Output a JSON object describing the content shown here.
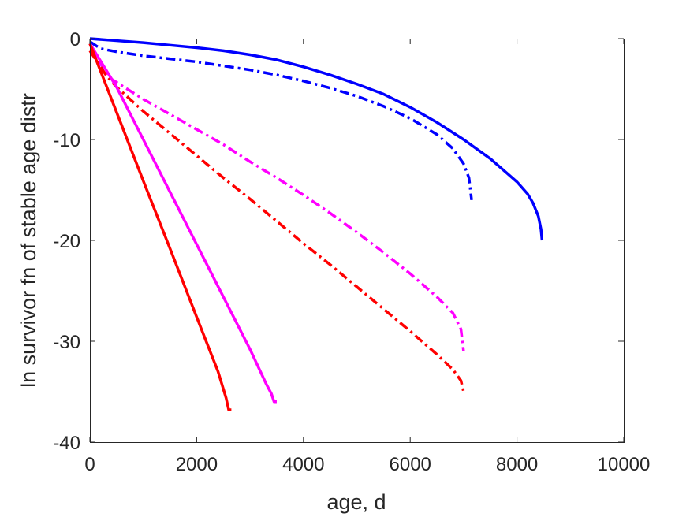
{
  "chart_data": {
    "type": "line",
    "title": "",
    "xlabel": "age, d",
    "ylabel": "ln survivor fn of stable age distr",
    "xlim": [
      0,
      10000
    ],
    "ylim": [
      -40,
      0
    ],
    "xticks": [
      0,
      2000,
      4000,
      6000,
      8000,
      10000
    ],
    "yticks": [
      0,
      -10,
      -20,
      -30,
      -40
    ],
    "xtick_labels": [
      "0",
      "2000",
      "4000",
      "6000",
      "8000",
      "10000"
    ],
    "ytick_labels": [
      "0",
      "-10",
      "-20",
      "-30",
      "-40"
    ],
    "grid": false,
    "legend": "none",
    "series": [
      {
        "color": "#0000ff",
        "style": "solid",
        "x": [
          0,
          500,
          1000,
          1500,
          2000,
          2500,
          3000,
          3500,
          4000,
          4500,
          5000,
          5500,
          6000,
          6500,
          7000,
          7500,
          8000,
          8200,
          8300,
          8400,
          8450,
          8470
        ],
        "y": [
          0,
          -0.2,
          -0.4,
          -0.65,
          -0.9,
          -1.2,
          -1.6,
          -2.1,
          -2.8,
          -3.6,
          -4.5,
          -5.5,
          -6.8,
          -8.3,
          -10.0,
          -11.9,
          -14.2,
          -15.4,
          -16.3,
          -17.6,
          -18.9,
          -20.0
        ]
      },
      {
        "color": "#0000ff",
        "style": "dashdot",
        "x": [
          0,
          200,
          500,
          1000,
          1500,
          2000,
          2500,
          3000,
          3500,
          4000,
          4500,
          5000,
          5500,
          6000,
          6500,
          6800,
          7000,
          7100,
          7150
        ],
        "y": [
          -0.3,
          -1.0,
          -1.3,
          -1.7,
          -2.0,
          -2.3,
          -2.7,
          -3.1,
          -3.6,
          -4.2,
          -4.9,
          -5.7,
          -6.7,
          -7.9,
          -9.5,
          -10.9,
          -12.4,
          -13.8,
          -16.0
        ]
      },
      {
        "color": "#ff00ff",
        "style": "dashdot",
        "x": [
          0,
          100,
          200,
          300,
          400,
          1000,
          1500,
          2000,
          2500,
          3000,
          3500,
          4000,
          4500,
          5000,
          5500,
          6000,
          6500,
          6800,
          6950,
          7000
        ],
        "y": [
          -0.5,
          -1.5,
          -2.5,
          -3.3,
          -4.0,
          -6.0,
          -7.5,
          -9.0,
          -10.5,
          -12.2,
          -13.8,
          -15.5,
          -17.3,
          -19.2,
          -21.2,
          -23.3,
          -25.6,
          -27.2,
          -28.8,
          -31.0
        ]
      },
      {
        "color": "#ff0000",
        "style": "dashdot",
        "x": [
          0,
          100,
          200,
          300,
          500,
          1000,
          1500,
          2000,
          2500,
          3000,
          3500,
          4000,
          4500,
          5000,
          5500,
          6000,
          6500,
          6800,
          6950,
          7000
        ],
        "y": [
          -1.2,
          -2.0,
          -2.8,
          -3.6,
          -4.8,
          -7.2,
          -9.4,
          -11.6,
          -13.8,
          -15.9,
          -18.1,
          -20.3,
          -22.4,
          -24.6,
          -26.8,
          -29.0,
          -31.3,
          -32.8,
          -33.9,
          -35.0
        ]
      },
      {
        "color": "#ff00ff",
        "style": "solid",
        "x": [
          0,
          500,
          1000,
          1500,
          2000,
          2500,
          3000,
          3300,
          3400,
          3450,
          3500
        ],
        "y": [
          -0.5,
          -4.8,
          -10.0,
          -15.2,
          -20.4,
          -25.6,
          -30.8,
          -34.2,
          -35.2,
          -36.0,
          -36.0
        ]
      },
      {
        "color": "#ff0000",
        "style": "solid",
        "x": [
          0,
          500,
          1000,
          1500,
          2000,
          2400,
          2550,
          2600,
          2650
        ],
        "y": [
          -0.5,
          -7.3,
          -14.1,
          -20.8,
          -27.6,
          -33.0,
          -35.6,
          -36.8,
          -36.8
        ]
      }
    ]
  }
}
